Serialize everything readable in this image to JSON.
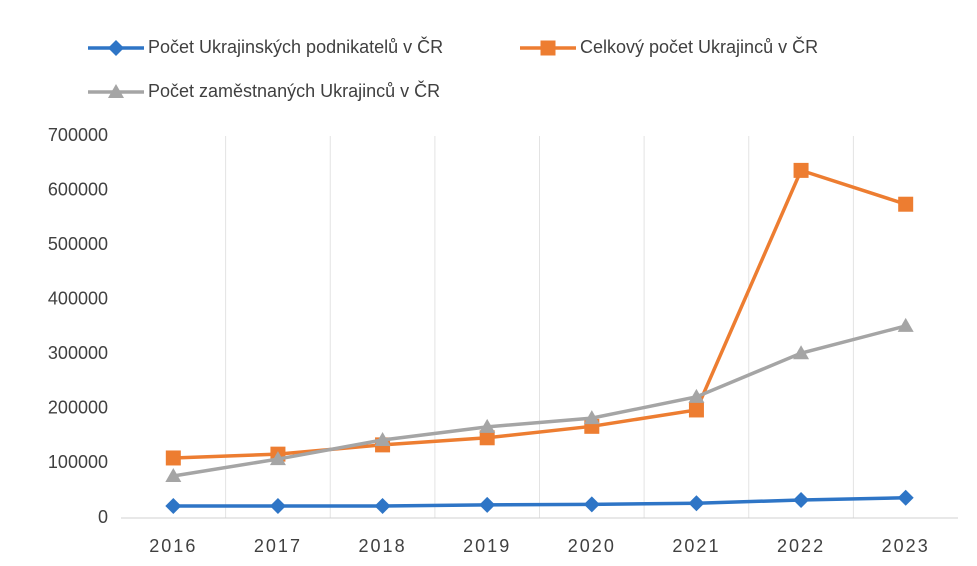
{
  "chart_data": {
    "type": "line",
    "categories": [
      "2016",
      "2017",
      "2018",
      "2019",
      "2020",
      "2021",
      "2022",
      "2023"
    ],
    "series": [
      {
        "name": "Počet Ukrajinských podnikatelů v ČR",
        "color": "#2e75c6",
        "marker": "diamond",
        "values": [
          22000,
          22000,
          22000,
          24000,
          25000,
          27000,
          33000,
          37000
        ]
      },
      {
        "name": "Celkový počet Ukrajinců v ČR",
        "color": "#ed7d31",
        "marker": "square",
        "values": [
          110000,
          117000,
          134000,
          147000,
          168000,
          198000,
          637000,
          575000
        ]
      },
      {
        "name": "Počet zaměstnaných Ukrajinců v ČR",
        "color": "#a5a5a5",
        "marker": "triangle",
        "values": [
          77000,
          108000,
          143000,
          167000,
          183000,
          222000,
          302000,
          352000
        ]
      }
    ],
    "ylim": [
      0,
      700000
    ],
    "yticks": [
      0,
      100000,
      200000,
      300000,
      400000,
      500000,
      600000,
      700000
    ],
    "grid": true,
    "legend": "top"
  }
}
